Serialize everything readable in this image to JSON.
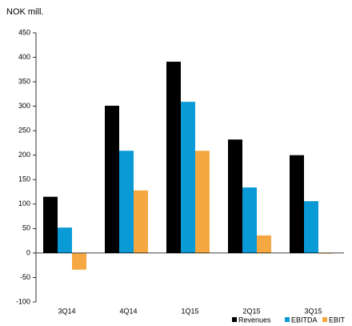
{
  "chart_data": {
    "type": "bar",
    "title": "NOK mill.",
    "categories": [
      "3Q14",
      "4Q14",
      "1Q15",
      "2Q15",
      "3Q15"
    ],
    "series": [
      {
        "name": "Revenues",
        "color": "#000000",
        "values": [
          115,
          301,
          391,
          232,
          200
        ]
      },
      {
        "name": "EBITDA",
        "color": "#0a9ad6",
        "values": [
          52,
          209,
          309,
          134,
          106
        ]
      },
      {
        "name": "EBIT",
        "color": "#f5a742",
        "values": [
          -34,
          128,
          209,
          36,
          -1
        ]
      }
    ],
    "ylim": [
      -100,
      450
    ],
    "yticks": [
      -100,
      -50,
      0,
      50,
      100,
      150,
      200,
      250,
      300,
      350,
      400,
      450
    ],
    "grid": false,
    "legend": "bottom-right"
  }
}
